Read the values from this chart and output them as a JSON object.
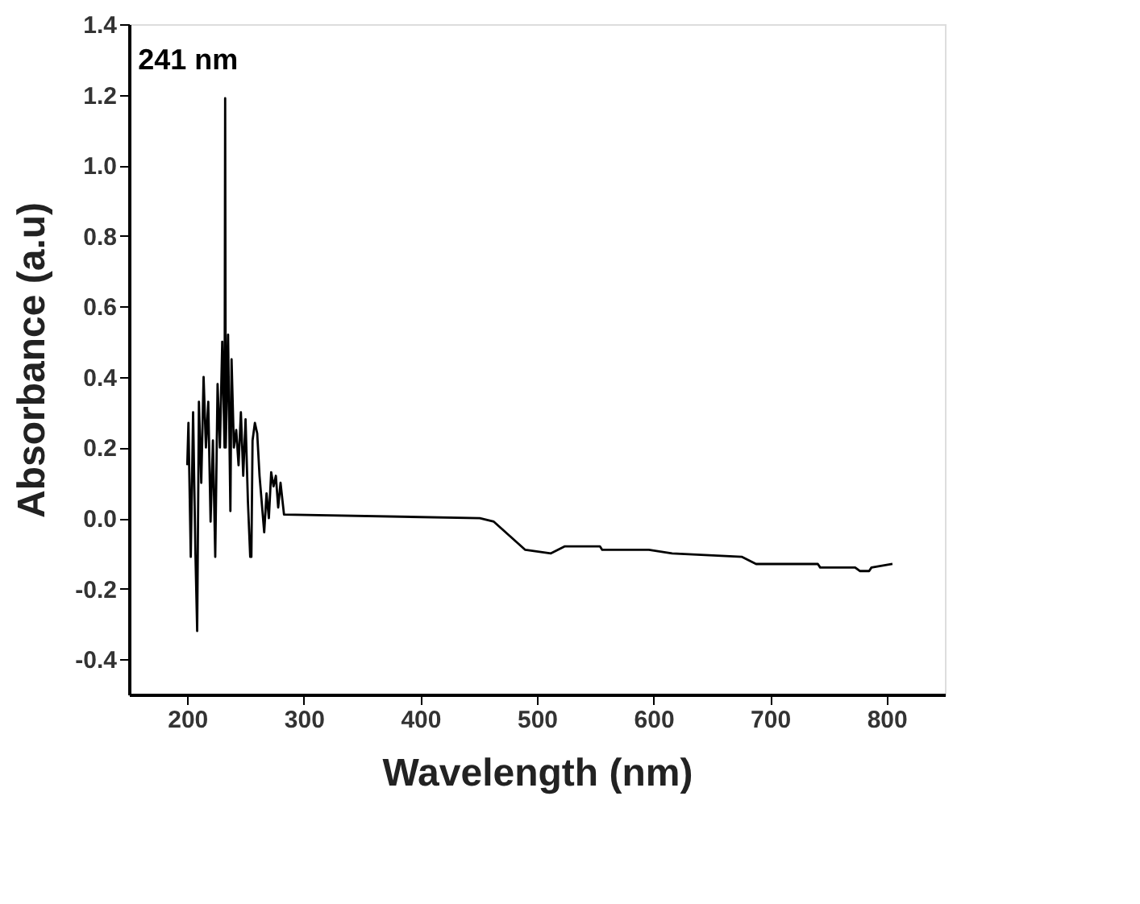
{
  "chart_data": {
    "type": "line",
    "xlabel": "Wavelength (nm)",
    "ylabel": "Absorbance (a.u)",
    "xlim": [
      150,
      850
    ],
    "ylim": [
      -0.5,
      1.4
    ],
    "xticks": [
      200,
      300,
      400,
      500,
      600,
      700,
      800
    ],
    "yticks": [
      {
        "value": -0.4,
        "label": "-0.4"
      },
      {
        "value": -0.2,
        "label": "-0.2"
      },
      {
        "value": 0,
        "label": "0.0"
      },
      {
        "value": 0.2,
        "label": "0.2"
      },
      {
        "value": 0.4,
        "label": "0.4"
      },
      {
        "value": 0.6,
        "label": "0.6"
      },
      {
        "value": 0.8,
        "label": "0.8"
      },
      {
        "value": 1.0,
        "label": "1.0"
      },
      {
        "value": 1.2,
        "label": "1.2"
      },
      {
        "value": 1.4,
        "label": "1.4"
      }
    ],
    "grid": false,
    "marker": "none",
    "line_style": "solid",
    "annotations": [
      {
        "text": "241 nm",
        "x": 232.5,
        "y": 1.19
      }
    ],
    "series": [
      {
        "color": "#000000",
        "x": [
          200,
          201,
          203,
          205,
          207,
          208.5,
          210,
          212,
          214,
          216,
          218,
          220,
          222,
          224,
          226,
          228,
          230,
          232,
          232.5,
          233,
          235,
          237,
          238,
          240,
          242,
          244,
          246,
          248,
          250,
          252,
          254,
          255,
          256,
          258,
          260,
          262,
          264,
          266,
          268,
          270,
          272,
          274,
          276,
          278,
          280,
          283,
          451,
          463,
          490,
          512,
          524,
          554,
          556,
          596,
          616,
          676,
          688,
          741,
          743,
          773,
          777,
          785,
          787,
          805
        ],
        "values": [
          0.15,
          0.27,
          -0.11,
          0.3,
          -0.1,
          -0.32,
          0.33,
          0.1,
          0.4,
          0.2,
          0.33,
          -0.01,
          0.22,
          -0.11,
          0.38,
          0.2,
          0.5,
          0.2,
          1.19,
          0.2,
          0.52,
          0.02,
          0.45,
          0.2,
          0.25,
          0.15,
          0.3,
          0.12,
          0.28,
          0.05,
          -0.11,
          -0.11,
          0.22,
          0.27,
          0.24,
          0.12,
          0.04,
          -0.04,
          0.07,
          0.0,
          0.13,
          0.09,
          0.12,
          0.03,
          0.1,
          0.01,
          0.0,
          -0.01,
          -0.09,
          -0.1,
          -0.08,
          -0.08,
          -0.09,
          -0.09,
          -0.1,
          -0.11,
          -0.13,
          -0.13,
          -0.14,
          -0.14,
          -0.15,
          -0.15,
          -0.14,
          -0.13
        ]
      }
    ]
  }
}
